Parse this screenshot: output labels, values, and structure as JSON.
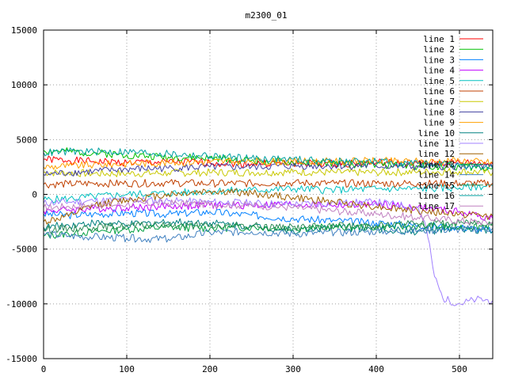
{
  "chart_data": {
    "type": "line",
    "title": "m2300_01",
    "xlabel": "",
    "ylabel": "",
    "xlim": [
      0,
      540
    ],
    "ylim": [
      -15000,
      15000
    ],
    "xticks": [
      0,
      100,
      200,
      300,
      400,
      500
    ],
    "yticks": [
      -15000,
      -10000,
      -5000,
      0,
      5000,
      10000,
      15000
    ],
    "grid": true,
    "legend_position": "top-right",
    "series": [
      {
        "name": "line 1",
        "color": "#ff0000",
        "x": [
          0,
          30,
          60,
          100,
          150,
          200,
          250,
          300,
          350,
          400,
          450,
          500,
          540
        ],
        "y": [
          3200,
          3100,
          3000,
          2900,
          2950,
          2900,
          2800,
          2850,
          2800,
          2900,
          2800,
          2900,
          2800
        ]
      },
      {
        "name": "line 2",
        "color": "#00c000",
        "x": [
          0,
          30,
          60,
          100,
          150,
          200,
          250,
          300,
          350,
          400,
          450,
          500,
          540
        ],
        "y": [
          4000,
          3900,
          3800,
          3600,
          3400,
          3300,
          3100,
          2900,
          2800,
          2700,
          2600,
          2500,
          2400
        ]
      },
      {
        "name": "line 3",
        "color": "#0080ff",
        "x": [
          0,
          30,
          60,
          100,
          150,
          200,
          250,
          300,
          350,
          400,
          450,
          500,
          540
        ],
        "y": [
          -1800,
          -1900,
          -1800,
          -1700,
          -1800,
          -1600,
          -1900,
          -2200,
          -2400,
          -2600,
          -2800,
          -3000,
          -3300
        ]
      },
      {
        "name": "line 4",
        "color": "#c000ff",
        "x": [
          0,
          30,
          60,
          100,
          150,
          200,
          250,
          300,
          350,
          400,
          450,
          500,
          540
        ],
        "y": [
          -1500,
          -1400,
          -1300,
          -1200,
          -1100,
          -1000,
          -1000,
          -900,
          -1000,
          -900,
          -1200,
          -1600,
          -2200
        ]
      },
      {
        "name": "line 5",
        "color": "#00c0c0",
        "x": [
          0,
          30,
          60,
          100,
          150,
          200,
          250,
          300,
          350,
          400,
          450,
          500,
          540
        ],
        "y": [
          -500,
          -400,
          -200,
          0,
          100,
          300,
          400,
          500,
          400,
          500,
          500,
          600,
          800
        ]
      },
      {
        "name": "line 6",
        "color": "#c04000",
        "x": [
          0,
          30,
          60,
          100,
          150,
          200,
          250,
          300,
          350,
          400,
          450,
          500,
          540
        ],
        "y": [
          900,
          950,
          1000,
          1000,
          1050,
          1000,
          1000,
          1050,
          1000,
          1000,
          1000,
          1000,
          1000
        ]
      },
      {
        "name": "line 7",
        "color": "#c8c800",
        "x": [
          0,
          30,
          60,
          100,
          150,
          200,
          250,
          300,
          350,
          400,
          450,
          500,
          540
        ],
        "y": [
          2000,
          1950,
          1900,
          1900,
          1950,
          2000,
          2000,
          2050,
          2000,
          2000,
          2050,
          2100,
          2000
        ]
      },
      {
        "name": "line 8",
        "color": "#4040a0",
        "x": [
          0,
          30,
          60,
          100,
          150,
          200,
          250,
          300,
          350,
          400,
          450,
          500,
          540
        ],
        "y": [
          1800,
          2000,
          2100,
          2300,
          2400,
          2500,
          2500,
          2600,
          2600,
          2600,
          2500,
          2600,
          2500
        ]
      },
      {
        "name": "line 9",
        "color": "#ffa000",
        "x": [
          0,
          30,
          60,
          100,
          150,
          200,
          250,
          300,
          350,
          400,
          450,
          500,
          540
        ],
        "y": [
          2500,
          2600,
          2700,
          2800,
          2900,
          3000,
          3000,
          3000,
          3000,
          3050,
          3000,
          3100,
          2900
        ]
      },
      {
        "name": "line 10",
        "color": "#008080",
        "x": [
          0,
          30,
          60,
          100,
          150,
          200,
          250,
          300,
          350,
          400,
          450,
          500,
          540
        ],
        "y": [
          -3000,
          -2800,
          -2600,
          -2800,
          -2500,
          -2600,
          -2900,
          -3300,
          -3000,
          -3200,
          -3400,
          -3200,
          -3400
        ]
      },
      {
        "name": "line 11",
        "color": "#a080ff",
        "x": [
          0,
          30,
          60,
          100,
          150,
          200,
          250,
          300,
          350,
          400,
          450,
          460,
          470,
          480,
          500,
          520,
          540
        ],
        "y": [
          -800,
          -700,
          -600,
          -500,
          -600,
          -700,
          -800,
          -900,
          -800,
          -700,
          -1200,
          -3000,
          -7500,
          -9500,
          -10000,
          -9600,
          -9700
        ]
      },
      {
        "name": "line 12",
        "color": "#a06000",
        "x": [
          0,
          30,
          60,
          100,
          150,
          200,
          250,
          300,
          350,
          400,
          450,
          500,
          540
        ],
        "y": [
          -2500,
          -2000,
          -1000,
          -500,
          0,
          300,
          100,
          -300,
          -700,
          -1100,
          -1500,
          -1800,
          -2000
        ]
      },
      {
        "name": "line 13",
        "color": "#00a040",
        "x": [
          0,
          30,
          60,
          100,
          150,
          200,
          250,
          300,
          350,
          400,
          450,
          500,
          540
        ],
        "y": [
          -3800,
          -3600,
          -3400,
          -3200,
          -3000,
          -3100,
          -3000,
          -3100,
          -3000,
          -3000,
          -2900,
          -3000,
          -2800
        ]
      },
      {
        "name": "line 14",
        "color": "#4080c0",
        "x": [
          0,
          30,
          60,
          100,
          150,
          200,
          250,
          300,
          350,
          400,
          450,
          500,
          540
        ],
        "y": [
          -3600,
          -3800,
          -3900,
          -4000,
          -4100,
          -3500,
          -3400,
          -3600,
          -3500,
          -3400,
          -3300,
          -3200,
          -3100
        ]
      },
      {
        "name": "line 15",
        "color": "#2e8b57",
        "x": [
          0,
          30,
          60,
          100,
          150,
          200,
          250,
          300,
          350,
          400,
          450,
          500,
          540
        ],
        "y": [
          -3200,
          -3100,
          -3000,
          -2900,
          -2800,
          -2900,
          -2900,
          -3000,
          -2900,
          -2800,
          -2700,
          -2600,
          -2500
        ]
      },
      {
        "name": "line 16",
        "color": "#00a0a0",
        "x": [
          0,
          30,
          60,
          100,
          150,
          200,
          250,
          300,
          350,
          400,
          450,
          500,
          540
        ],
        "y": [
          3800,
          3900,
          3900,
          3900,
          3700,
          3500,
          3300,
          3200,
          3000,
          3000,
          2800,
          2600,
          2400
        ]
      },
      {
        "name": "line 17",
        "color": "#c080c0",
        "x": [
          0,
          30,
          60,
          100,
          150,
          200,
          250,
          300,
          350,
          400,
          450,
          500,
          540
        ],
        "y": [
          -1200,
          -1100,
          -1000,
          -900,
          -800,
          -900,
          -1000,
          -1200,
          -1500,
          -1800,
          -2100,
          -2400,
          -2600
        ]
      }
    ]
  }
}
